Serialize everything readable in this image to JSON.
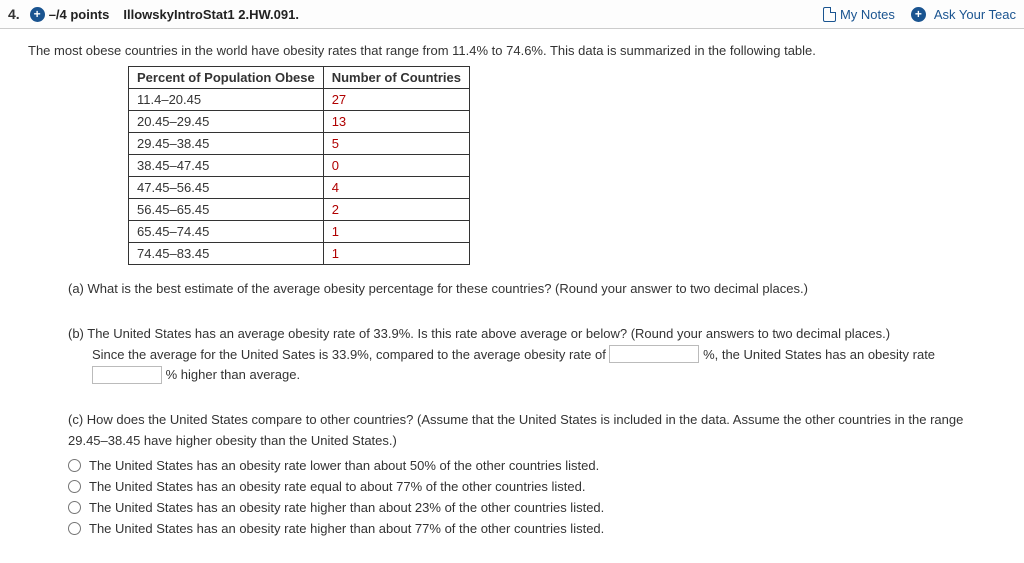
{
  "header": {
    "question_number": "4.",
    "points": "–/4 points",
    "assignment": "IllowskyIntroStat1 2.HW.091.",
    "my_notes": "My Notes",
    "ask_teacher": "Ask Your Teac"
  },
  "intro": "The most obese countries in the world have obesity rates that range from 11.4% to 74.6%. This data is summarized in the following table.",
  "table": {
    "columns": [
      "Percent of Population Obese",
      "Number of Countries"
    ],
    "rows": [
      [
        "11.4–20.45",
        "27"
      ],
      [
        "20.45–29.45",
        "13"
      ],
      [
        "29.45–38.45",
        "5"
      ],
      [
        "38.45–47.45",
        "0"
      ],
      [
        "47.45–56.45",
        "4"
      ],
      [
        "56.45–65.45",
        "2"
      ],
      [
        "65.45–74.45",
        "1"
      ],
      [
        "74.45–83.45",
        "1"
      ]
    ]
  },
  "part_a": "(a) What is the best estimate of the average obesity percentage for these countries? (Round your answer to two decimal places.)",
  "part_b": {
    "prompt": "(b) The United States has an average obesity rate of 33.9%. Is this rate above average or below? (Round your answers to two decimal places.)",
    "line1_a": "Since the average for the United Sates is 33.9%, compared to the average obesity rate of",
    "line1_b": "%, the United States has an obesity rate",
    "line2_b": "% higher than average."
  },
  "part_c": {
    "prompt": "(c) How does the United States compare to other countries? (Assume that the United States is included in the data. Assume the other countries in the range 29.45–38.45 have higher obesity than the United States.)",
    "options": [
      "The United States has an obesity rate lower than about 50% of the other countries listed.",
      "The United States has an obesity rate equal to about 77% of the other countries listed.",
      "The United States has an obesity rate higher than about 23% of the other countries listed.",
      "The United States has an obesity rate higher than about 77% of the other countries listed."
    ]
  }
}
